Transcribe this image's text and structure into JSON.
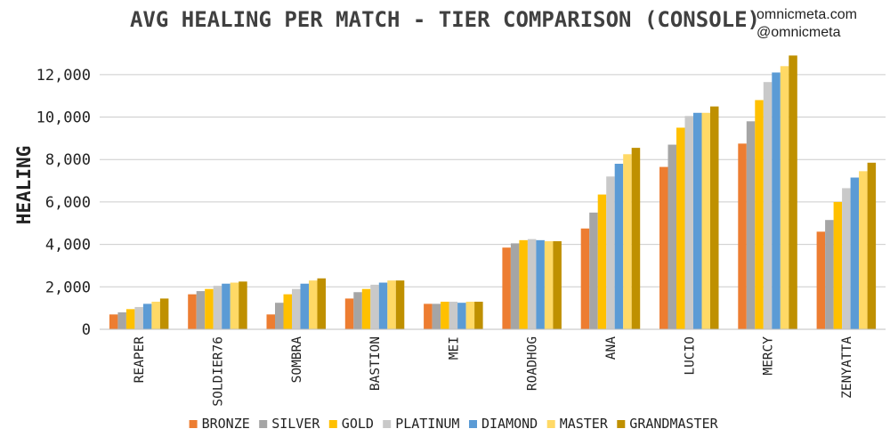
{
  "chart_data": {
    "type": "bar",
    "title": "AVG HEALING PER MATCH - TIER COMPARISON (CONSOLE)",
    "credits": [
      "omnicmeta.com",
      "@omnicmeta"
    ],
    "ylabel": "HEALING",
    "ylim": [
      0,
      13000
    ],
    "yticks": [
      0,
      2000,
      4000,
      6000,
      8000,
      10000,
      12000
    ],
    "ytick_labels": [
      "0",
      "2,000",
      "4,000",
      "6,000",
      "8,000",
      "10,000",
      "12,000"
    ],
    "grid": true,
    "legend_position": "bottom",
    "categories": [
      "REAPER",
      "SOLDIER76",
      "SOMBRA",
      "BASTION",
      "MEI",
      "ROADHOG",
      "ANA",
      "LUCIO",
      "MERCY",
      "ZENYATTA"
    ],
    "series": [
      {
        "name": "BRONZE",
        "color": "#ED7D31",
        "values": [
          700,
          1650,
          700,
          1450,
          1200,
          3850,
          4750,
          7650,
          8750,
          4600
        ]
      },
      {
        "name": "SILVER",
        "color": "#A5A5A5",
        "values": [
          800,
          1800,
          1250,
          1750,
          1200,
          4050,
          5500,
          8700,
          9800,
          5150
        ]
      },
      {
        "name": "GOLD",
        "color": "#FFC000",
        "values": [
          950,
          1900,
          1650,
          1900,
          1300,
          4200,
          6350,
          9500,
          10800,
          6000
        ]
      },
      {
        "name": "PLATINUM",
        "color": "#C9C9C9",
        "values": [
          1050,
          2050,
          1900,
          2100,
          1300,
          4250,
          7200,
          10050,
          11650,
          6650
        ]
      },
      {
        "name": "DIAMOND",
        "color": "#5B9BD5",
        "values": [
          1200,
          2150,
          2150,
          2200,
          1250,
          4200,
          7800,
          10200,
          12100,
          7150
        ]
      },
      {
        "name": "MASTER",
        "color": "#FFD966",
        "values": [
          1300,
          2200,
          2300,
          2300,
          1300,
          4150,
          8250,
          10200,
          12400,
          7450
        ]
      },
      {
        "name": "GRANDMASTER",
        "color": "#BF9000",
        "values": [
          1450,
          2250,
          2400,
          2300,
          1300,
          4150,
          8550,
          10500,
          12900,
          7850
        ]
      }
    ]
  }
}
